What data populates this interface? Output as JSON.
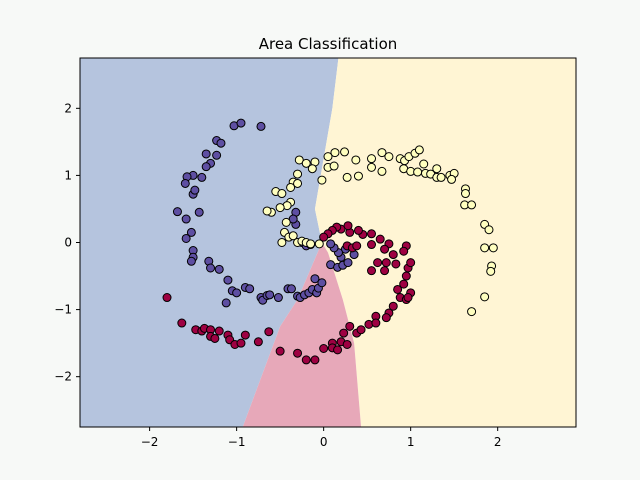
{
  "chart_data": {
    "type": "scatter",
    "title": "Area Classification",
    "xlabel": "",
    "ylabel": "",
    "xlim": [
      -2.8,
      2.9
    ],
    "ylim": [
      -2.75,
      2.75
    ],
    "x_ticks": [
      -2,
      -1,
      0,
      1,
      2
    ],
    "y_ticks": [
      -2,
      -1,
      0,
      1,
      2
    ],
    "x_tick_labels": [
      "−2",
      "−1",
      "0",
      "1",
      "2"
    ],
    "y_tick_labels": [
      "−2",
      "−1",
      "0",
      "1",
      "2"
    ],
    "grid": false,
    "legend": "none",
    "regions": [
      {
        "class": "purple",
        "color": "#b5c4de",
        "polygon": [
          [
            -2.8,
            2.75
          ],
          [
            0.17,
            2.75
          ],
          [
            0.1,
            2.0
          ],
          [
            -0.1,
            0.5
          ],
          [
            -0.02,
            0.0
          ],
          [
            -0.3,
            -0.85
          ],
          [
            -0.5,
            -1.25
          ],
          [
            -0.93,
            -2.75
          ],
          [
            -2.8,
            -2.75
          ]
        ]
      },
      {
        "class": "yellow",
        "color": "#fff5d4",
        "polygon": [
          [
            0.17,
            2.75
          ],
          [
            2.9,
            2.75
          ],
          [
            2.9,
            -2.75
          ],
          [
            0.43,
            -2.75
          ],
          [
            0.35,
            -1.5
          ],
          [
            0.22,
            -0.85
          ],
          [
            0.05,
            -0.15
          ],
          [
            -0.02,
            0.0
          ],
          [
            -0.1,
            0.5
          ],
          [
            0.1,
            2.0
          ]
        ]
      },
      {
        "class": "red",
        "color": "#e7a8b9",
        "polygon": [
          [
            -0.02,
            0.0
          ],
          [
            0.05,
            -0.15
          ],
          [
            0.22,
            -0.85
          ],
          [
            0.35,
            -1.5
          ],
          [
            0.43,
            -2.75
          ],
          [
            -0.93,
            -2.75
          ],
          [
            -0.5,
            -1.25
          ],
          [
            -0.3,
            -0.85
          ]
        ]
      }
    ],
    "series": [
      {
        "class": "purple",
        "color": "#5e4fa2",
        "points": [
          [
            -1.03,
            1.74
          ],
          [
            -0.95,
            1.78
          ],
          [
            -0.72,
            1.73
          ],
          [
            -1.23,
            1.52
          ],
          [
            -1.18,
            1.48
          ],
          [
            -1.23,
            1.3
          ],
          [
            -1.35,
            1.32
          ],
          [
            -1.3,
            1.18
          ],
          [
            -1.35,
            1.13
          ],
          [
            -1.5,
            1.0
          ],
          [
            -1.57,
            0.98
          ],
          [
            -1.4,
            0.97
          ],
          [
            -1.59,
            0.88
          ],
          [
            -1.5,
            0.72
          ],
          [
            -1.48,
            0.78
          ],
          [
            -1.43,
            0.45
          ],
          [
            -1.68,
            0.46
          ],
          [
            -1.58,
            0.35
          ],
          [
            -1.52,
            0.15
          ],
          [
            -1.58,
            0.06
          ],
          [
            -1.5,
            -0.12
          ],
          [
            -1.5,
            -0.22
          ],
          [
            -1.52,
            -0.28
          ],
          [
            -1.32,
            -0.28
          ],
          [
            -1.3,
            -0.38
          ],
          [
            -1.2,
            -0.4
          ],
          [
            -1.1,
            -0.56
          ],
          [
            -1.05,
            -0.72
          ],
          [
            -1.0,
            -0.75
          ],
          [
            -0.9,
            -0.67
          ],
          [
            -0.85,
            -0.69
          ],
          [
            -1.12,
            -0.9
          ],
          [
            -0.72,
            -0.82
          ],
          [
            -0.7,
            -0.86
          ],
          [
            -0.65,
            -0.79
          ],
          [
            -0.62,
            -0.78
          ],
          [
            -0.52,
            -0.82
          ],
          [
            -0.41,
            -0.69
          ],
          [
            -0.37,
            -0.69
          ],
          [
            -0.3,
            -0.8
          ],
          [
            -0.27,
            -0.82
          ],
          [
            -0.22,
            -0.78
          ],
          [
            -0.17,
            -0.75
          ],
          [
            -0.13,
            -0.7
          ],
          [
            -0.08,
            -0.75
          ],
          [
            -0.06,
            -0.68
          ],
          [
            -0.1,
            -0.54
          ],
          [
            -0.02,
            -0.6
          ],
          [
            0.08,
            -0.33
          ],
          [
            0.16,
            -0.37
          ],
          [
            0.22,
            -0.34
          ],
          [
            0.28,
            -0.3
          ],
          [
            0.35,
            -0.18
          ],
          [
            0.2,
            -0.22
          ],
          [
            0.25,
            -0.1
          ],
          [
            0.17,
            -0.15
          ],
          [
            0.12,
            -0.08
          ],
          [
            0.08,
            -0.02
          ],
          [
            -0.32,
            0.27
          ],
          [
            -0.32,
            0.45
          ],
          [
            -0.35,
            0.35
          ],
          [
            -0.25,
            0.0
          ],
          [
            -0.2,
            -0.05
          ],
          [
            -0.15,
            -0.03
          ]
        ]
      },
      {
        "class": "yellow",
        "color": "#ffffbf",
        "points": [
          [
            0.05,
            1.28
          ],
          [
            0.13,
            1.34
          ],
          [
            0.24,
            1.35
          ],
          [
            -0.1,
            1.2
          ],
          [
            0.05,
            1.12
          ],
          [
            0.37,
            1.23
          ],
          [
            0.55,
            1.25
          ],
          [
            0.67,
            1.34
          ],
          [
            0.75,
            1.28
          ],
          [
            0.88,
            1.25
          ],
          [
            0.93,
            1.22
          ],
          [
            0.98,
            1.28
          ],
          [
            1.05,
            1.33
          ],
          [
            1.1,
            1.38
          ],
          [
            1.15,
            1.17
          ],
          [
            0.92,
            1.1
          ],
          [
            1.0,
            1.06
          ],
          [
            1.08,
            1.05
          ],
          [
            1.17,
            1.03
          ],
          [
            1.23,
            1.02
          ],
          [
            1.3,
            0.97
          ],
          [
            1.35,
            0.97
          ],
          [
            1.3,
            1.1
          ],
          [
            1.45,
            1.0
          ],
          [
            1.5,
            1.03
          ],
          [
            1.47,
            0.94
          ],
          [
            1.63,
            0.8
          ],
          [
            1.63,
            0.73
          ],
          [
            1.62,
            0.56
          ],
          [
            1.7,
            0.56
          ],
          [
            1.85,
            0.27
          ],
          [
            1.9,
            0.19
          ],
          [
            1.85,
            -0.08
          ],
          [
            1.95,
            -0.08
          ],
          [
            1.93,
            -0.35
          ],
          [
            1.92,
            -0.43
          ],
          [
            1.85,
            -0.81
          ],
          [
            1.7,
            -1.03
          ],
          [
            0.67,
            1.06
          ],
          [
            0.55,
            1.12
          ],
          [
            0.4,
            0.99
          ],
          [
            0.27,
            0.97
          ],
          [
            0.12,
            1.14
          ],
          [
            -0.28,
            1.23
          ],
          [
            -0.2,
            1.18
          ],
          [
            -0.13,
            1.1
          ],
          [
            -0.02,
            0.93
          ],
          [
            -0.3,
            1.02
          ],
          [
            -0.35,
            0.9
          ],
          [
            -0.3,
            0.88
          ],
          [
            -0.55,
            0.76
          ],
          [
            -0.48,
            0.73
          ],
          [
            -0.38,
            0.82
          ],
          [
            -0.38,
            0.6
          ],
          [
            -0.42,
            0.55
          ],
          [
            -0.5,
            0.52
          ],
          [
            -0.6,
            0.45
          ],
          [
            -0.65,
            0.47
          ],
          [
            -0.43,
            0.3
          ],
          [
            -0.45,
            0.15
          ],
          [
            -0.48,
            0.0
          ],
          [
            -0.4,
            0.08
          ],
          [
            -0.35,
            0.1
          ],
          [
            -0.3,
            0.0
          ],
          [
            -0.25,
            0.02
          ],
          [
            -0.2,
            0.0
          ],
          [
            -0.15,
            -0.02
          ],
          [
            -0.05,
            -0.02
          ]
        ]
      },
      {
        "class": "red",
        "color": "#9e0142",
        "points": [
          [
            -1.8,
            -0.82
          ],
          [
            -1.63,
            -1.2
          ],
          [
            -1.47,
            -1.3
          ],
          [
            -1.4,
            -1.32
          ],
          [
            -1.37,
            -1.28
          ],
          [
            -1.3,
            -1.3
          ],
          [
            -1.2,
            -1.32
          ],
          [
            -1.3,
            -1.4
          ],
          [
            -1.25,
            -1.43
          ],
          [
            -1.1,
            -1.38
          ],
          [
            -1.08,
            -1.45
          ],
          [
            -1.02,
            -1.52
          ],
          [
            -0.95,
            -1.5
          ],
          [
            -0.75,
            -1.48
          ],
          [
            -0.9,
            -1.38
          ],
          [
            -0.63,
            -1.33
          ],
          [
            -0.5,
            -1.62
          ],
          [
            -0.3,
            -1.65
          ],
          [
            -0.2,
            -1.75
          ],
          [
            -0.1,
            -1.75
          ],
          [
            0.0,
            -1.58
          ],
          [
            0.1,
            -1.5
          ],
          [
            0.1,
            -1.57
          ],
          [
            0.16,
            -1.6
          ],
          [
            0.2,
            -1.48
          ],
          [
            0.27,
            -1.52
          ],
          [
            0.23,
            -1.35
          ],
          [
            0.3,
            -1.25
          ],
          [
            0.38,
            -1.35
          ],
          [
            0.43,
            -1.3
          ],
          [
            0.52,
            -1.22
          ],
          [
            0.6,
            -1.1
          ],
          [
            0.6,
            -1.2
          ],
          [
            0.75,
            -1.05
          ],
          [
            0.72,
            -1.12
          ],
          [
            0.8,
            -0.95
          ],
          [
            0.88,
            -0.82
          ],
          [
            0.95,
            -0.85
          ],
          [
            1.0,
            -0.75
          ],
          [
            0.97,
            -0.82
          ],
          [
            0.85,
            -0.7
          ],
          [
            0.92,
            -0.62
          ],
          [
            0.95,
            -0.5
          ],
          [
            0.97,
            -0.38
          ],
          [
            1.0,
            -0.3
          ],
          [
            0.83,
            -0.32
          ],
          [
            0.95,
            -0.05
          ],
          [
            0.92,
            -0.13
          ],
          [
            0.8,
            -0.18
          ],
          [
            0.75,
            -0.02
          ],
          [
            0.7,
            -0.1
          ],
          [
            0.65,
            0.05
          ],
          [
            0.55,
            0.13
          ],
          [
            0.55,
            -0.03
          ],
          [
            0.45,
            0.12
          ],
          [
            0.4,
            0.18
          ],
          [
            0.3,
            0.15
          ],
          [
            0.2,
            0.2
          ],
          [
            0.28,
            0.25
          ],
          [
            0.15,
            0.23
          ],
          [
            0.1,
            0.18
          ],
          [
            0.05,
            0.13
          ],
          [
            0.0,
            0.08
          ],
          [
            0.27,
            -0.05
          ],
          [
            0.33,
            -0.08
          ],
          [
            0.38,
            -0.05
          ],
          [
            0.55,
            -0.42
          ],
          [
            0.7,
            -0.42
          ],
          [
            0.62,
            -0.3
          ],
          [
            0.72,
            -0.3
          ]
        ]
      }
    ]
  }
}
